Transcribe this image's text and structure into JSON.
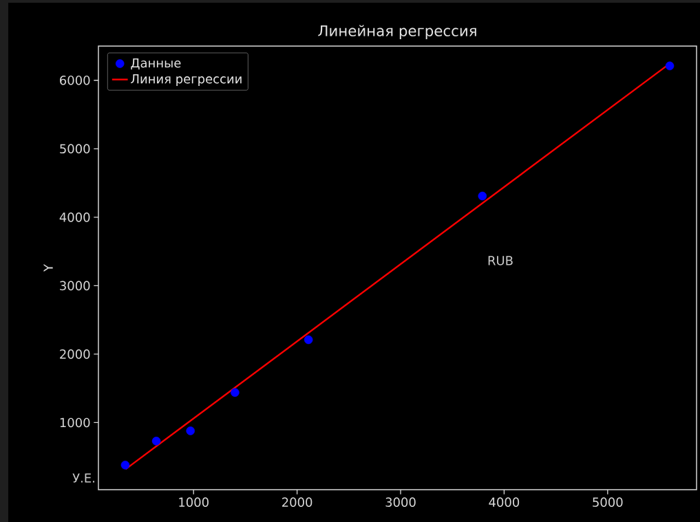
{
  "chart_data": {
    "type": "scatter",
    "title": "Линейная регрессия",
    "ylabel": "Y",
    "annotations": [
      "RUB",
      "У.Е."
    ],
    "series": [
      {
        "name": "Данные",
        "marker": "circle",
        "color": "#0000ff",
        "x": [
          340,
          640,
          970,
          1400,
          2110,
          3790,
          5600
        ],
        "values": [
          380,
          730,
          880,
          1440,
          2210,
          4310,
          6210
        ]
      },
      {
        "name": "Линия регрессии",
        "type": "line",
        "marker": "none",
        "color": "#ff0000",
        "x": [
          344,
          5596
        ],
        "values": [
          320,
          6240
        ]
      }
    ],
    "xlim": [
      81,
      5859
    ],
    "ylim": [
      20,
      6500
    ],
    "xticks": [
      1000,
      2000,
      3000,
      4000,
      5000
    ],
    "yticks": [
      1000,
      2000,
      3000,
      4000,
      5000,
      6000
    ],
    "legend": "top left",
    "grid": false
  }
}
